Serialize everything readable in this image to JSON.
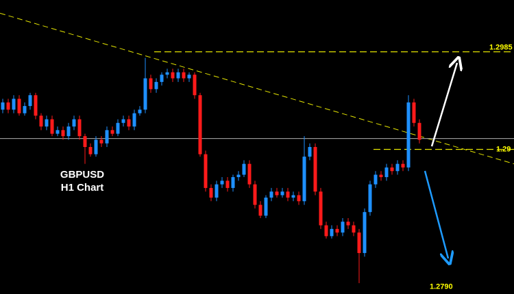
{
  "chart_data": {
    "type": "candlestick",
    "annotations": [
      "GBPUSD",
      "H1 Chart"
    ],
    "ylim": [
      1.2784,
      1.3028
    ],
    "yticks": [
      1.2985,
      {
        "value": 1.2904,
        "label": "1.29"
      },
      {
        "value": 1.279,
        "label": "1.2790"
      }
    ],
    "current_price": 1.2913,
    "trendline": [
      1.3017,
      1.2892
    ],
    "up_color": "#1e90ff",
    "down_color": "#ff1a1a",
    "candles": [
      [
        1.2937,
        1.2946,
        1.2934,
        1.2943
      ],
      [
        1.2943,
        1.2946,
        1.2934,
        1.2937
      ],
      [
        1.2937,
        1.2949,
        1.2934,
        1.2946
      ],
      [
        1.2946,
        1.2949,
        1.2932,
        1.2934
      ],
      [
        1.2934,
        1.2943,
        1.2932,
        1.294
      ],
      [
        1.294,
        1.2951,
        1.2937,
        1.2949
      ],
      [
        1.2949,
        1.2951,
        1.2929,
        1.2932
      ],
      [
        1.2932,
        1.2934,
        1.292,
        1.2923
      ],
      [
        1.2923,
        1.2932,
        1.292,
        1.2929
      ],
      [
        1.2929,
        1.2932,
        1.2915,
        1.2917
      ],
      [
        1.2917,
        1.2923,
        1.2915,
        1.292
      ],
      [
        1.292,
        1.2923,
        1.2912,
        1.2915
      ],
      [
        1.2915,
        1.2926,
        1.2912,
        1.2923
      ],
      [
        1.2923,
        1.2932,
        1.292,
        1.2929
      ],
      [
        1.2929,
        1.2932,
        1.2912,
        1.2915
      ],
      [
        1.2915,
        1.2917,
        1.2892,
        1.2906
      ],
      [
        1.2906,
        1.2909,
        1.2898,
        1.29
      ],
      [
        1.29,
        1.2915,
        1.2898,
        1.2912
      ],
      [
        1.2912,
        1.2915,
        1.2906,
        1.2909
      ],
      [
        1.2909,
        1.2923,
        1.2906,
        1.292
      ],
      [
        1.292,
        1.2923,
        1.2915,
        1.2917
      ],
      [
        1.2917,
        1.2929,
        1.2915,
        1.2926
      ],
      [
        1.2926,
        1.2932,
        1.2923,
        1.2929
      ],
      [
        1.2929,
        1.2932,
        1.292,
        1.2923
      ],
      [
        1.2923,
        1.2937,
        1.292,
        1.2934
      ],
      [
        1.2934,
        1.294,
        1.2932,
        1.2937
      ],
      [
        1.2937,
        1.298,
        1.2934,
        1.2963
      ],
      [
        1.2963,
        1.2966,
        1.2951,
        1.2954
      ],
      [
        1.2954,
        1.2963,
        1.2951,
        1.296
      ],
      [
        1.296,
        1.2968,
        1.2957,
        1.2966
      ],
      [
        1.2966,
        1.2971,
        1.2963,
        1.2968
      ],
      [
        1.2968,
        1.2971,
        1.296,
        1.2963
      ],
      [
        1.2963,
        1.2971,
        1.296,
        1.2968
      ],
      [
        1.2968,
        1.2971,
        1.296,
        1.2963
      ],
      [
        1.2963,
        1.2968,
        1.296,
        1.2966
      ],
      [
        1.2966,
        1.2968,
        1.2946,
        1.2949
      ],
      [
        1.2949,
        1.2951,
        1.2898,
        1.29
      ],
      [
        1.29,
        1.2903,
        1.2869,
        1.2872
      ],
      [
        1.2872,
        1.2875,
        1.2861,
        1.2864
      ],
      [
        1.2864,
        1.2878,
        1.2861,
        1.2875
      ],
      [
        1.2875,
        1.2881,
        1.2872,
        1.2878
      ],
      [
        1.2878,
        1.2881,
        1.2869,
        1.2872
      ],
      [
        1.2872,
        1.2883,
        1.2869,
        1.2881
      ],
      [
        1.2881,
        1.2886,
        1.2878,
        1.2883
      ],
      [
        1.2883,
        1.2895,
        1.2881,
        1.2892
      ],
      [
        1.2892,
        1.2895,
        1.2872,
        1.2875
      ],
      [
        1.2875,
        1.2878,
        1.2855,
        1.2858
      ],
      [
        1.2858,
        1.2861,
        1.2847,
        1.2849
      ],
      [
        1.2849,
        1.2866,
        1.2847,
        1.2864
      ],
      [
        1.2864,
        1.2872,
        1.2861,
        1.2869
      ],
      [
        1.2869,
        1.2872,
        1.2864,
        1.2866
      ],
      [
        1.2866,
        1.2872,
        1.2864,
        1.2869
      ],
      [
        1.2869,
        1.2872,
        1.2861,
        1.2864
      ],
      [
        1.2864,
        1.2869,
        1.2861,
        1.2866
      ],
      [
        1.2866,
        1.2869,
        1.2858,
        1.2861
      ],
      [
        1.2861,
        1.2915,
        1.2858,
        1.2898
      ],
      [
        1.2898,
        1.2909,
        1.2895,
        1.2906
      ],
      [
        1.2906,
        1.2909,
        1.2866,
        1.2869
      ],
      [
        1.2869,
        1.2872,
        1.2838,
        1.2841
      ],
      [
        1.2841,
        1.2844,
        1.283,
        1.2832
      ],
      [
        1.2832,
        1.2841,
        1.283,
        1.2838
      ],
      [
        1.2838,
        1.2841,
        1.2832,
        1.2835
      ],
      [
        1.2835,
        1.2847,
        1.2832,
        1.2844
      ],
      [
        1.2844,
        1.2847,
        1.2838,
        1.2841
      ],
      [
        1.2841,
        1.2844,
        1.2832,
        1.2835
      ],
      [
        1.2835,
        1.2838,
        1.2793,
        1.2818
      ],
      [
        1.2818,
        1.2855,
        1.2815,
        1.2852
      ],
      [
        1.2852,
        1.2878,
        1.2849,
        1.2875
      ],
      [
        1.2875,
        1.2886,
        1.2872,
        1.2883
      ],
      [
        1.2883,
        1.2886,
        1.2878,
        1.2881
      ],
      [
        1.2881,
        1.2892,
        1.2878,
        1.2889
      ],
      [
        1.2889,
        1.2892,
        1.2883,
        1.2886
      ],
      [
        1.2886,
        1.2895,
        1.2883,
        1.2892
      ],
      [
        1.2892,
        1.2895,
        1.2886,
        1.2889
      ],
      [
        1.2889,
        1.2949,
        1.2886,
        1.2943
      ],
      [
        1.2943,
        1.2946,
        1.2923,
        1.2926
      ],
      [
        1.2926,
        1.2929,
        1.2909,
        1.2912
      ]
    ]
  }
}
